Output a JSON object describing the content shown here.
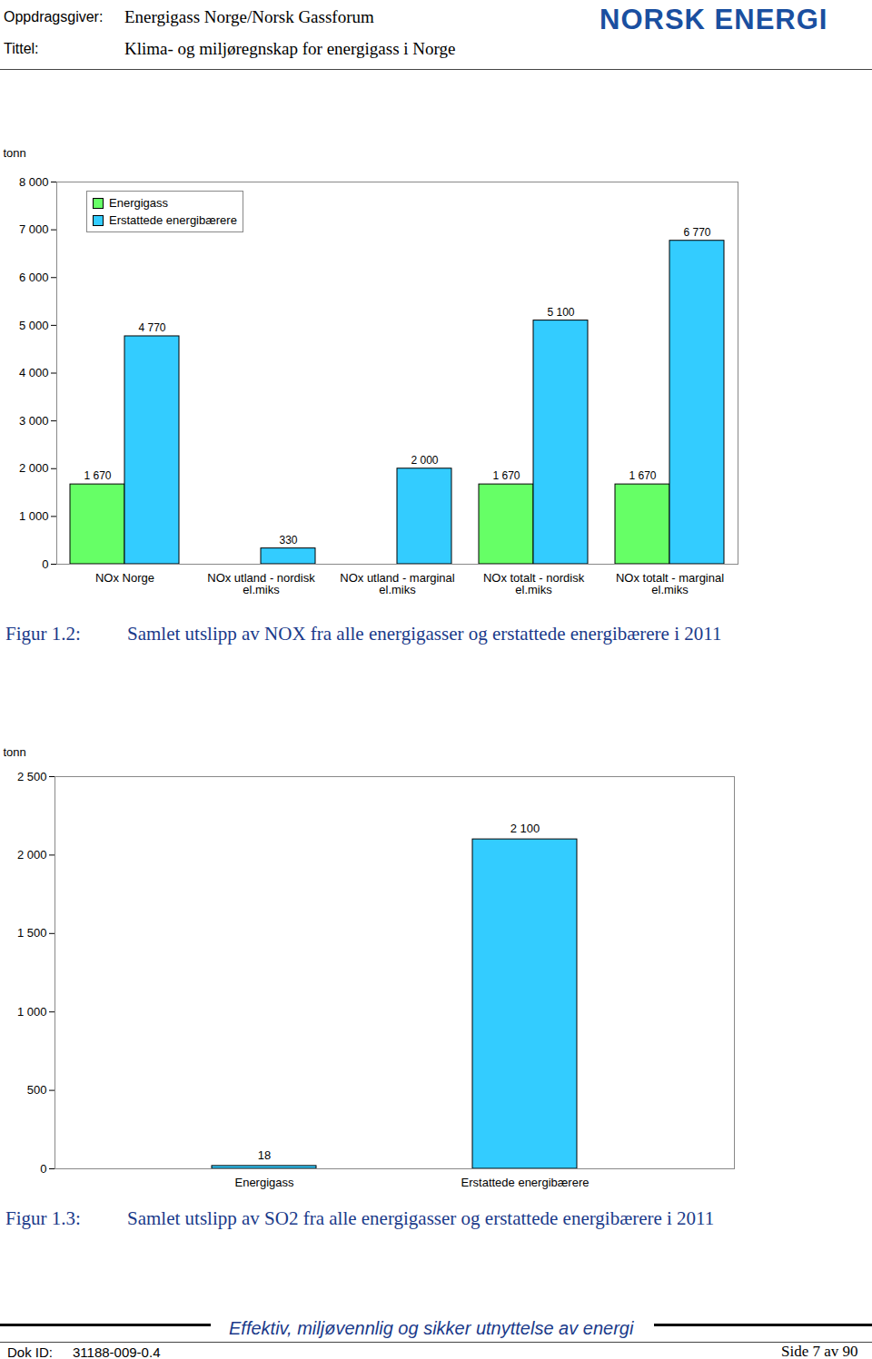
{
  "header": {
    "client_label": "Oppdragsgiver:",
    "client": "Energigass Norge/Norsk Gassforum",
    "title_label": "Tittel:",
    "title": "Klima- og miljøregnskap for energigass i Norge",
    "logo": "NORSK ENERGI"
  },
  "chart_data": [
    {
      "type": "bar",
      "ylabel": "tonn",
      "categories": [
        "NOx Norge",
        "NOx utland - nordisk el.miks",
        "NOx utland - marginal el.miks",
        "NOx totalt - nordisk el.miks",
        "NOx totalt - marginal el.miks"
      ],
      "series": [
        {
          "name": "Energigass",
          "color": "#66ff66",
          "values": [
            1670,
            null,
            null,
            1670,
            1670
          ],
          "value_labels": [
            "1 670",
            null,
            null,
            "1 670",
            "1 670"
          ]
        },
        {
          "name": "Erstattede energibærere",
          "color": "#33ccff",
          "values": [
            4770,
            330,
            2000,
            5100,
            6770
          ],
          "value_labels": [
            "4 770",
            "330",
            "2 000",
            "5 100",
            "6 770"
          ]
        }
      ],
      "ylim": [
        0,
        8000
      ],
      "yticks": [
        0,
        {
          "value": 1000,
          "label": "1 000"
        },
        {
          "value": 2000,
          "label": "2 000"
        },
        {
          "value": 3000,
          "label": "3 000"
        },
        {
          "value": 4000,
          "label": "4 000"
        },
        {
          "value": 5000,
          "label": "5 000"
        },
        {
          "value": 6000,
          "label": "6 000"
        },
        {
          "value": 7000,
          "label": "7 000"
        },
        {
          "value": 8000,
          "label": "8 000"
        }
      ],
      "grid": false,
      "legend": "top-left",
      "data_labels": true,
      "caption_label": "Figur 1.2:",
      "caption": "Samlet utslipp av NOX fra alle energigasser og erstattede energibærere i 2011"
    },
    {
      "type": "bar",
      "ylabel": "tonn",
      "categories": [
        "Energigass",
        "Erstattede energibærere"
      ],
      "values": [
        18,
        2100
      ],
      "value_labels": [
        "18",
        "2 100"
      ],
      "color": "#33ccff",
      "ylim": [
        0,
        2500
      ],
      "yticks": [
        0,
        500,
        {
          "value": 1000,
          "label": "1 000"
        },
        {
          "value": 1500,
          "label": "1 500"
        },
        {
          "value": 2000,
          "label": "2 000"
        },
        {
          "value": 2500,
          "label": "2 500"
        }
      ],
      "grid": false,
      "data_labels": true,
      "caption_label": "Figur 1.3:",
      "caption": "Samlet utslipp av SO2 fra alle energigasser og erstattede energibærere i 2011"
    }
  ],
  "footer": {
    "slogan": "Effektiv, miljøvennlig og sikker utnyttelse av energi",
    "doc_id_label": "Dok ID:",
    "doc_id": "31188-009-0.4",
    "page": "Side 7 av 90"
  }
}
